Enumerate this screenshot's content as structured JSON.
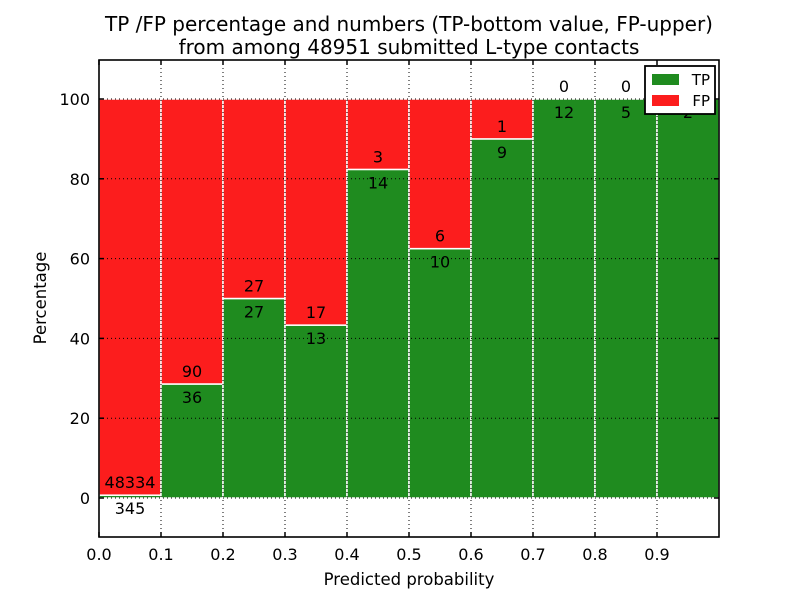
{
  "chart_data": {
    "type": "bar",
    "stacked": true,
    "title": "TP /FP percentage and numbers (TP-bottom value, FP-upper)",
    "subtitle": "from among 48951 submitted L-type contacts",
    "xlabel": "Predicted probability",
    "ylabel": "Percentage",
    "total_contacts": 48951,
    "xlim": [
      0.0,
      1.0
    ],
    "ylim": [
      -10,
      110
    ],
    "xticks": [
      "0.0",
      "0.1",
      "0.2",
      "0.3",
      "0.4",
      "0.5",
      "0.6",
      "0.7",
      "0.8",
      "0.9"
    ],
    "yticks": [
      0,
      20,
      40,
      60,
      80,
      100
    ],
    "grid": "dotted",
    "bin_width": 0.1,
    "colors": {
      "tp": "#1f8b1f",
      "fp": "#fc1d1d",
      "edge": "#ffffff",
      "text": "#000000"
    },
    "legend": {
      "position": "upper right",
      "entries": [
        {
          "label": "TP",
          "color": "#1f8b1f"
        },
        {
          "label": "FP",
          "color": "#fc1d1d"
        }
      ]
    },
    "bins": [
      {
        "range": "0.0-0.1",
        "tp": 345,
        "fp": 48334,
        "tp_pct": 0.71
      },
      {
        "range": "0.1-0.2",
        "tp": 36,
        "fp": 90,
        "tp_pct": 28.57
      },
      {
        "range": "0.2-0.3",
        "tp": 27,
        "fp": 27,
        "tp_pct": 50.0
      },
      {
        "range": "0.3-0.4",
        "tp": 13,
        "fp": 17,
        "tp_pct": 43.33
      },
      {
        "range": "0.4-0.5",
        "tp": 14,
        "fp": 3,
        "tp_pct": 82.35
      },
      {
        "range": "0.5-0.6",
        "tp": 10,
        "fp": 6,
        "tp_pct": 62.5
      },
      {
        "range": "0.6-0.7",
        "tp": 9,
        "fp": 1,
        "tp_pct": 90.0
      },
      {
        "range": "0.7-0.8",
        "tp": 12,
        "fp": 0,
        "tp_pct": 100.0
      },
      {
        "range": "0.8-0.9",
        "tp": 5,
        "fp": 0,
        "tp_pct": 100.0
      },
      {
        "range": "0.9-1.0",
        "tp": 2,
        "fp": 0,
        "tp_pct": 100.0
      }
    ]
  }
}
